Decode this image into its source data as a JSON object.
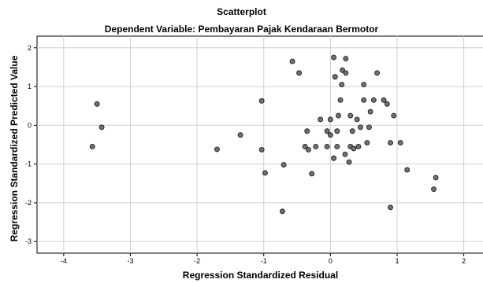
{
  "chart_data": {
    "type": "scatter",
    "title": "Scatterplot",
    "subtitle": "Dependent Variable: Pembayaran Pajak Kendaraan Bermotor",
    "xlabel": "Regression Standardized Residual",
    "ylabel": "Regression Standardized Predicted Value",
    "xlim": [
      -4.4,
      2.3
    ],
    "ylim": [
      -3.3,
      2.3
    ],
    "xticks": [
      -4,
      -3,
      -2,
      -1,
      0,
      1,
      2
    ],
    "yticks": [
      2,
      1,
      0,
      -1,
      -2,
      -3
    ],
    "grid": true,
    "marker_color": "#707070",
    "points": [
      {
        "x": -3.5,
        "y": 0.55
      },
      {
        "x": -3.43,
        "y": -0.05
      },
      {
        "x": -3.57,
        "y": -0.55
      },
      {
        "x": -1.7,
        "y": -0.62
      },
      {
        "x": -1.35,
        "y": -0.25
      },
      {
        "x": -1.03,
        "y": 0.63
      },
      {
        "x": -1.03,
        "y": -0.63
      },
      {
        "x": -0.98,
        "y": -1.23
      },
      {
        "x": -0.72,
        "y": -2.22
      },
      {
        "x": -0.7,
        "y": -1.02
      },
      {
        "x": -0.57,
        "y": 1.65
      },
      {
        "x": -0.47,
        "y": 1.35
      },
      {
        "x": -0.38,
        "y": -0.55
      },
      {
        "x": -0.35,
        "y": -0.15
      },
      {
        "x": -0.33,
        "y": -0.63
      },
      {
        "x": -0.28,
        "y": -1.25
      },
      {
        "x": -0.22,
        "y": -0.55
      },
      {
        "x": -0.15,
        "y": 0.15
      },
      {
        "x": -0.05,
        "y": -0.55
      },
      {
        "x": -0.05,
        "y": -0.15
      },
      {
        "x": 0.0,
        "y": 0.15
      },
      {
        "x": 0.0,
        "y": -0.25
      },
      {
        "x": 0.05,
        "y": 1.75
      },
      {
        "x": 0.07,
        "y": 1.25
      },
      {
        "x": 0.05,
        "y": -0.85
      },
      {
        "x": 0.1,
        "y": -0.55
      },
      {
        "x": 0.1,
        "y": -0.15
      },
      {
        "x": 0.12,
        "y": 0.25
      },
      {
        "x": 0.15,
        "y": 0.65
      },
      {
        "x": 0.17,
        "y": 1.05
      },
      {
        "x": 0.18,
        "y": 1.42
      },
      {
        "x": 0.23,
        "y": 1.35
      },
      {
        "x": 0.23,
        "y": 1.72
      },
      {
        "x": 0.22,
        "y": -0.75
      },
      {
        "x": 0.28,
        "y": -0.95
      },
      {
        "x": 0.3,
        "y": -0.55
      },
      {
        "x": 0.3,
        "y": 0.25
      },
      {
        "x": 0.33,
        "y": -0.15
      },
      {
        "x": 0.35,
        "y": -0.6
      },
      {
        "x": 0.4,
        "y": 0.15
      },
      {
        "x": 0.42,
        "y": -0.55
      },
      {
        "x": 0.45,
        "y": -0.05
      },
      {
        "x": 0.5,
        "y": 0.65
      },
      {
        "x": 0.5,
        "y": 1.05
      },
      {
        "x": 0.55,
        "y": -0.45
      },
      {
        "x": 0.58,
        "y": -0.05
      },
      {
        "x": 0.6,
        "y": 0.35
      },
      {
        "x": 0.65,
        "y": 0.65
      },
      {
        "x": 0.7,
        "y": 1.35
      },
      {
        "x": 0.8,
        "y": 0.65
      },
      {
        "x": 0.85,
        "y": 0.55
      },
      {
        "x": 0.9,
        "y": -0.45
      },
      {
        "x": 0.9,
        "y": -2.12
      },
      {
        "x": 0.95,
        "y": 0.25
      },
      {
        "x": 1.05,
        "y": -0.45
      },
      {
        "x": 1.15,
        "y": -1.15
      },
      {
        "x": 1.55,
        "y": -1.65
      },
      {
        "x": 1.58,
        "y": -1.35
      }
    ]
  }
}
